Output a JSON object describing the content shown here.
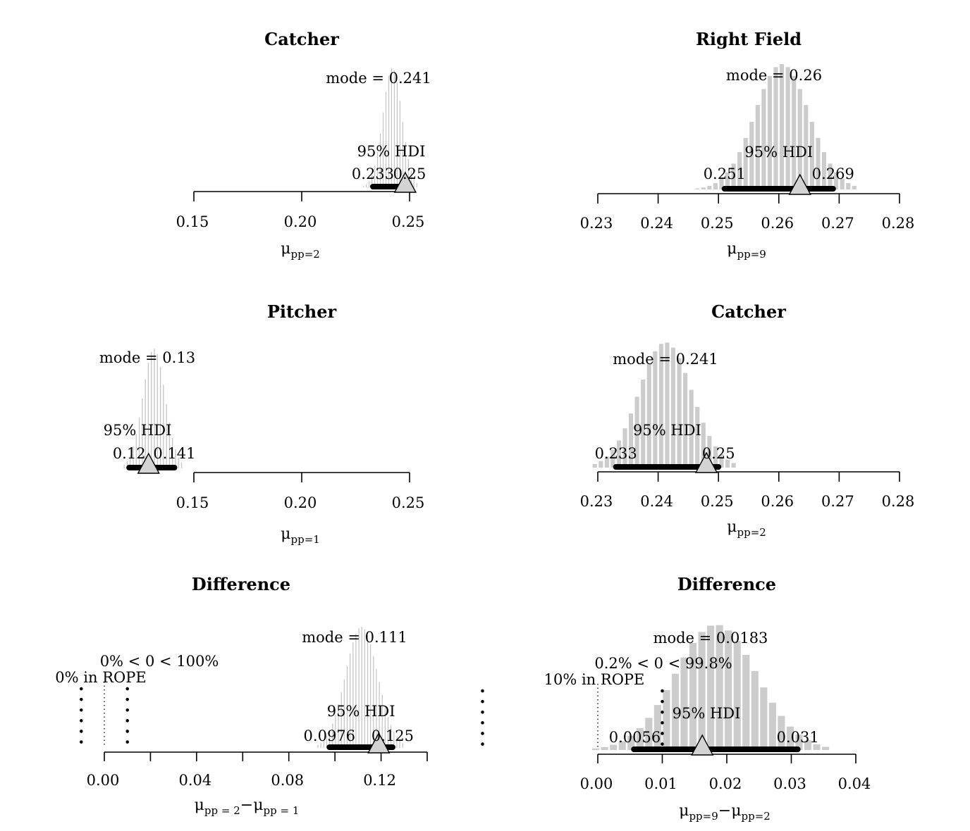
{
  "chart_data": [
    {
      "type": "histogram",
      "title": "Catcher",
      "xlabel": "μ",
      "xlabel_sub": "pp=2",
      "xlim": [
        0.15,
        0.25
      ],
      "x_ticks": [
        0.15,
        0.2,
        0.25
      ],
      "x_tick_labels": [
        "0.15",
        "0.20",
        "0.25"
      ],
      "mode_label": "mode = 0.241",
      "mode": 0.241,
      "hdi_label": "95% HDI",
      "hdi": [
        0.233,
        0.25
      ],
      "hdi_low_label": "0.233",
      "hdi_high_label": "0.25",
      "comp_value": 0.248,
      "bar_style": "thin",
      "bars": {
        "start": 0.228,
        "end": 0.254,
        "count": 20,
        "center": 0.242,
        "sd": 0.0044
      }
    },
    {
      "type": "histogram",
      "title": "Right Field",
      "xlabel": "μ",
      "xlabel_sub": "pp=9",
      "xlim": [
        0.23,
        0.28
      ],
      "x_ticks": [
        0.23,
        0.24,
        0.25,
        0.26,
        0.27,
        0.28
      ],
      "x_tick_labels": [
        "0.23",
        "0.24",
        "0.25",
        "0.26",
        "0.27",
        "0.28"
      ],
      "mode_label": "mode = 0.26",
      "mode": 0.26,
      "hdi_label": "95% HDI",
      "hdi": [
        0.251,
        0.269
      ],
      "hdi_low_label": "0.251",
      "hdi_high_label": "0.269",
      "comp_value": 0.2635,
      "bar_style": "wide",
      "bars": {
        "start": 0.246,
        "end": 0.273,
        "count": 27,
        "center": 0.2605,
        "sd": 0.0045
      }
    },
    {
      "type": "histogram",
      "title": "Pitcher",
      "xlabel": "μ",
      "xlabel_sub": "pp=1",
      "xlim": [
        0.15,
        0.25
      ],
      "x_ticks": [
        0.15,
        0.2,
        0.25
      ],
      "x_tick_labels": [
        "0.15",
        "0.20",
        "0.25"
      ],
      "mode_label": "mode = 0.13",
      "mode": 0.13,
      "hdi_label": "95% HDI",
      "hdi": [
        0.12,
        0.141
      ],
      "hdi_low_label": "0.12",
      "hdi_high_label": "0.141",
      "comp_value": 0.129,
      "bar_style": "thin",
      "bars": {
        "start": 0.117,
        "end": 0.145,
        "count": 20,
        "center": 0.1315,
        "sd": 0.0052
      }
    },
    {
      "type": "histogram",
      "title": "Catcher",
      "xlabel": "μ",
      "xlabel_sub": "pp=2",
      "xlim": [
        0.23,
        0.28
      ],
      "x_ticks": [
        0.23,
        0.24,
        0.25,
        0.26,
        0.27,
        0.28
      ],
      "x_tick_labels": [
        "0.23",
        "0.24",
        "0.25",
        "0.26",
        "0.27",
        "0.28"
      ],
      "mode_label": "mode = 0.241",
      "mode": 0.241,
      "hdi_label": "95% HDI",
      "hdi": [
        0.233,
        0.25
      ],
      "hdi_low_label": "0.233",
      "hdi_high_label": "0.25",
      "comp_value": 0.248,
      "bar_style": "wide",
      "bars": {
        "start": 0.229,
        "end": 0.253,
        "count": 24,
        "center": 0.2412,
        "sd": 0.0044
      }
    },
    {
      "type": "histogram",
      "title": "Difference",
      "xlabel": "μ",
      "xlabel_sub1": "pp = 2",
      "xlabel_mid": "−μ",
      "xlabel_sub2": "pp = 1",
      "xlim": [
        0.0,
        0.14
      ],
      "x_ticks": [
        0.0,
        0.02,
        0.04,
        0.06,
        0.08,
        0.1,
        0.12,
        0.14
      ],
      "x_tick_labels": [
        "0.00",
        "",
        "0.04",
        "",
        "0.08",
        "",
        "0.12",
        ""
      ],
      "mode_label": "mode = 0.111",
      "mode": 0.111,
      "hdi_label": "95% HDI",
      "hdi": [
        0.0976,
        0.125
      ],
      "hdi_low_label": "0.0976",
      "hdi_high_label": "0.125",
      "comp_value": 0.119,
      "comp_label": "0% < 0 < 100%",
      "rope_label": "0% in ROPE",
      "rope": [
        -0.01,
        0.01
      ],
      "zero_line": 0.0,
      "bar_style": "thin",
      "bars": {
        "start": 0.092,
        "end": 0.13,
        "count": 30,
        "center": 0.1115,
        "sd": 0.007
      }
    },
    {
      "type": "histogram",
      "title": "Difference",
      "xlabel": "μ",
      "xlabel_sub1": "pp=9",
      "xlabel_mid": "−μ",
      "xlabel_sub2": "pp=2",
      "xlim": [
        0.0,
        0.04
      ],
      "x_ticks": [
        0.0,
        0.01,
        0.02,
        0.03,
        0.04
      ],
      "x_tick_labels": [
        "0.00",
        "0.01",
        "0.02",
        "0.03",
        "0.04"
      ],
      "mode_label": "mode = 0.0183",
      "mode": 0.0183,
      "hdi_label": "95% HDI",
      "hdi": [
        0.0056,
        0.031
      ],
      "hdi_low_label": "0.0056",
      "hdi_high_label": "0.031",
      "comp_value": 0.0162,
      "comp_label": "0.2% < 0 < 99.8%",
      "rope_label": "10% in ROPE",
      "rope": [
        -0.01,
        0.01
      ],
      "zero_line": 0.0,
      "bar_style": "wide",
      "bars": {
        "start": -0.001,
        "end": 0.036,
        "count": 27,
        "center": 0.0183,
        "sd": 0.0063
      }
    }
  ]
}
